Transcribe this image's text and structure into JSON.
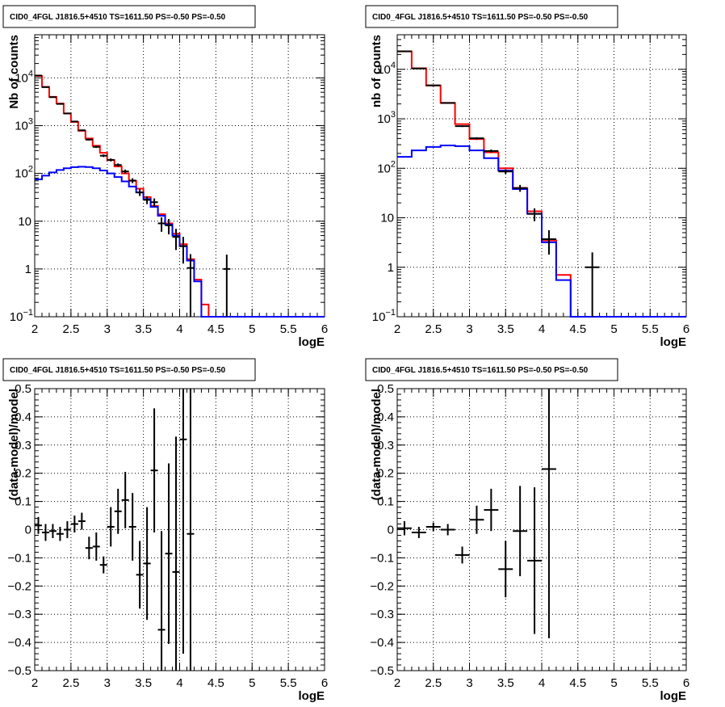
{
  "panels": [
    {
      "title": "CID0_4FGL J1816.5+4510 TS=1611.50 PS=-0.50 PS=-0.50",
      "ylabel": "Nb of counts",
      "xlabel": "logE",
      "yscale": "log",
      "yticks": [
        {
          "v": 0.1,
          "label": "10",
          "sup": "−1"
        },
        {
          "v": 1,
          "label": "1",
          "sup": ""
        },
        {
          "v": 10,
          "label": "10",
          "sup": ""
        },
        {
          "v": 100,
          "label": "10",
          "sup": "2"
        },
        {
          "v": 1000,
          "label": "10",
          "sup": "3"
        },
        {
          "v": 10000,
          "label": "10",
          "sup": "4"
        }
      ],
      "xticks": [
        "2",
        "2.5",
        "3",
        "3.5",
        "4",
        "4.5",
        "5",
        "5.5",
        "6"
      ]
    },
    {
      "title": "CID0_4FGL J1816.5+4510 TS=1611.50 PS=-0.50 PS=-0.50",
      "ylabel": "nb of counts",
      "xlabel": "logE",
      "yscale": "log",
      "yticks": [
        {
          "v": 0.1,
          "label": "10",
          "sup": "−1"
        },
        {
          "v": 1,
          "label": "1",
          "sup": ""
        },
        {
          "v": 10,
          "label": "10",
          "sup": ""
        },
        {
          "v": 100,
          "label": "10",
          "sup": "2"
        },
        {
          "v": 1000,
          "label": "10",
          "sup": "3"
        },
        {
          "v": 10000,
          "label": "10",
          "sup": "4"
        }
      ],
      "xticks": [
        "2",
        "2.5",
        "3",
        "3.5",
        "4",
        "4.5",
        "5",
        "5.5",
        "6"
      ]
    },
    {
      "title": "CID0_4FGL J1816.5+4510 TS=1611.50 PS=-0.50 PS=-0.50",
      "ylabel": "(data-model)/model",
      "xlabel": "logE",
      "yscale": "linear",
      "yticks": [
        {
          "v": -0.5,
          "label": "−0.5"
        },
        {
          "v": -0.4,
          "label": "−0.4"
        },
        {
          "v": -0.3,
          "label": "−0.3"
        },
        {
          "v": -0.2,
          "label": "−0.2"
        },
        {
          "v": -0.1,
          "label": "−0.1"
        },
        {
          "v": 0,
          "label": "0"
        },
        {
          "v": 0.1,
          "label": "0.1"
        },
        {
          "v": 0.2,
          "label": "0.2"
        },
        {
          "v": 0.3,
          "label": "0.3"
        },
        {
          "v": 0.4,
          "label": "0.4"
        },
        {
          "v": 0.5,
          "label": "0.5"
        }
      ],
      "xticks": [
        "2",
        "2.5",
        "3",
        "3.5",
        "4",
        "4.5",
        "5",
        "5.5",
        "6"
      ]
    },
    {
      "title": "CID0_4FGL J1816.5+4510 TS=1611.50 PS=-0.50 PS=-0.50",
      "ylabel": "(data-model)/model",
      "xlabel": "logE",
      "yscale": "linear",
      "yticks": [
        {
          "v": -0.5,
          "label": "−0.5"
        },
        {
          "v": -0.4,
          "label": "−0.4"
        },
        {
          "v": -0.3,
          "label": "−0.3"
        },
        {
          "v": -0.2,
          "label": "−0.2"
        },
        {
          "v": -0.1,
          "label": "−0.1"
        },
        {
          "v": 0,
          "label": "0"
        },
        {
          "v": 0.1,
          "label": "0.1"
        },
        {
          "v": 0.2,
          "label": "0.2"
        },
        {
          "v": 0.3,
          "label": "0.3"
        },
        {
          "v": 0.4,
          "label": "0.4"
        },
        {
          "v": 0.5,
          "label": "0.5"
        }
      ],
      "xticks": [
        "2",
        "2.5",
        "3",
        "3.5",
        "4",
        "4.5",
        "5",
        "5.5",
        "6"
      ]
    }
  ],
  "colors": {
    "total_model": "#ff0000",
    "source_model": "#0000ff",
    "data": "#000000",
    "grid": "#000000"
  },
  "chart_data": [
    {
      "type": "line",
      "title": "CID0_4FGL J1816.5+4510 TS=1611.50 PS=-0.50 PS=-0.50",
      "xlabel": "logE",
      "ylabel": "Nb of counts",
      "xlim": [
        2,
        6
      ],
      "ylim": [
        0.1,
        80000
      ],
      "yscale": "log",
      "grid": true,
      "bin_width": 0.1,
      "series": [
        {
          "style": "step",
          "color": "#ff0000",
          "x": [
            2.0,
            2.1,
            2.2,
            2.3,
            2.4,
            2.5,
            2.6,
            2.7,
            2.8,
            2.9,
            3.0,
            3.1,
            3.2,
            3.3,
            3.4,
            3.5,
            3.6,
            3.7,
            3.8,
            3.9,
            4.0,
            4.1,
            4.2,
            4.3,
            4.4,
            4.5,
            4.6,
            4.7,
            4.8,
            4.9,
            5.0,
            5.1,
            5.2,
            5.3,
            5.4,
            5.5,
            5.6,
            5.7,
            5.8,
            5.9
          ],
          "values": [
            11000,
            6500,
            4000,
            2900,
            1800,
            1200,
            780,
            540,
            380,
            270,
            190,
            140,
            100,
            70,
            48,
            32,
            21,
            14,
            9,
            5.5,
            3.3,
            1.6,
            0.6,
            0.18,
            0.1,
            0.1,
            0.1,
            0.1,
            0.1,
            0.1,
            0.1,
            0.1,
            0.1,
            0.1,
            0.1,
            0.1,
            0.1,
            0.1,
            0.1,
            0.1
          ]
        },
        {
          "style": "step",
          "color": "#0000ff",
          "x": [
            2.0,
            2.1,
            2.2,
            2.3,
            2.4,
            2.5,
            2.6,
            2.7,
            2.8,
            2.9,
            3.0,
            3.1,
            3.2,
            3.3,
            3.4,
            3.5,
            3.6,
            3.7,
            3.8,
            3.9,
            4.0,
            4.1,
            4.2,
            4.3,
            4.4,
            4.5,
            4.6,
            4.7,
            4.8,
            4.9,
            5.0,
            5.1,
            5.2,
            5.3,
            5.4,
            5.5,
            5.6,
            5.7,
            5.8,
            5.9
          ],
          "values": [
            75,
            90,
            105,
            118,
            128,
            135,
            138,
            136,
            128,
            115,
            100,
            84,
            68,
            53,
            40,
            29,
            20,
            13,
            8.5,
            5,
            3,
            1.5,
            0.55,
            0.1,
            0.1,
            0.1,
            0.1,
            0.1,
            0.1,
            0.1,
            0.1,
            0.1,
            0.1,
            0.1,
            0.1,
            0.1,
            0.1,
            0.1,
            0.1,
            0.1
          ]
        },
        {
          "style": "errorbar",
          "color": "#000000",
          "x": [
            2.05,
            2.15,
            2.25,
            2.35,
            2.45,
            2.55,
            2.65,
            2.75,
            2.85,
            2.95,
            3.05,
            3.15,
            3.25,
            3.35,
            3.45,
            3.55,
            3.65,
            3.75,
            3.85,
            3.95,
            4.05,
            4.15,
            4.65
          ],
          "values": [
            11200,
            6400,
            3950,
            2850,
            1800,
            1220,
            800,
            510,
            360,
            235,
            192,
            150,
            110,
            71,
            40,
            28,
            25,
            9,
            8.2,
            4.7,
            3,
            1.05,
            1
          ],
          "err": [
            105,
            80,
            63,
            53,
            42,
            35,
            28,
            23,
            19,
            15,
            14,
            12,
            10.5,
            8.4,
            6.3,
            5.3,
            5,
            3,
            2.9,
            2.2,
            1.7,
            1,
            1
          ]
        }
      ]
    },
    {
      "type": "line",
      "title": "CID0_4FGL J1816.5+4510 TS=1611.50 PS=-0.50 PS=-0.50",
      "xlabel": "logE",
      "ylabel": "nb of counts",
      "xlim": [
        2,
        6
      ],
      "ylim": [
        0.1,
        50000
      ],
      "yscale": "log",
      "grid": true,
      "bin_width": 0.2,
      "series": [
        {
          "style": "step",
          "color": "#ff0000",
          "x": [
            2.0,
            2.2,
            2.4,
            2.6,
            2.8,
            3.0,
            3.2,
            3.4,
            3.6,
            3.8,
            4.0,
            4.2,
            4.4,
            4.6,
            4.8,
            5.0,
            5.2,
            5.4,
            5.6,
            5.8
          ],
          "values": [
            23000,
            10500,
            4700,
            2100,
            780,
            390,
            210,
            100,
            40,
            13.5,
            3.5,
            0.7,
            0.1,
            0.1,
            0.1,
            0.1,
            0.1,
            0.1,
            0.1,
            0.1
          ]
        },
        {
          "style": "step",
          "color": "#0000ff",
          "x": [
            2.0,
            2.2,
            2.4,
            2.6,
            2.8,
            3.0,
            3.2,
            3.4,
            3.6,
            3.8,
            4.0,
            4.2,
            4.4,
            4.6,
            4.8,
            5.0,
            5.2,
            5.4,
            5.6,
            5.8
          ],
          "values": [
            170,
            230,
            270,
            290,
            280,
            230,
            160,
            90,
            38,
            12,
            3.2,
            0.55,
            0.1,
            0.1,
            0.1,
            0.1,
            0.1,
            0.1,
            0.1,
            0.1
          ]
        },
        {
          "style": "errorbar",
          "color": "#000000",
          "x": [
            2.1,
            2.3,
            2.5,
            2.7,
            2.9,
            3.1,
            3.3,
            3.5,
            3.7,
            3.9,
            4.1,
            4.7
          ],
          "values": [
            23100,
            10400,
            4750,
            2090,
            710,
            405,
            224,
            86,
            39.8,
            12,
            3.7,
            1
          ],
          "err": [
            152,
            102,
            69,
            46,
            27,
            20,
            15,
            9.3,
            6.3,
            3.5,
            1.9,
            1
          ]
        }
      ]
    },
    {
      "type": "scatter",
      "title": "CID0_4FGL J1816.5+4510 TS=1611.50 PS=-0.50 PS=-0.50",
      "xlabel": "logE",
      "ylabel": "(data-model)/model",
      "xlim": [
        2,
        6
      ],
      "ylim": [
        -0.5,
        0.5
      ],
      "grid": true,
      "x_halfwidth": 0.05,
      "series": [
        {
          "style": "errorbar",
          "color": "#000000",
          "x": [
            2.05,
            2.15,
            2.25,
            2.35,
            2.45,
            2.55,
            2.65,
            2.75,
            2.85,
            2.95,
            3.05,
            3.15,
            3.25,
            3.35,
            3.45,
            3.55,
            3.65,
            3.75,
            3.85,
            3.95,
            4.05,
            4.15
          ],
          "values": [
            0.015,
            -0.01,
            -0.005,
            -0.015,
            0,
            0.02,
            0.03,
            -0.065,
            -0.06,
            -0.125,
            0.01,
            0.065,
            0.105,
            0.01,
            -0.16,
            -0.12,
            0.21,
            -0.355,
            -0.085,
            -0.15,
            0.32,
            -0.015
          ],
          "err": [
            0.03,
            0.03,
            0.025,
            0.025,
            0.03,
            0.03,
            0.03,
            0.04,
            0.05,
            0.03,
            0.07,
            0.08,
            0.1,
            0.12,
            0.12,
            0.2,
            0.22,
            0.35,
            0.32,
            0.48,
            0.76,
            0.6
          ]
        }
      ]
    },
    {
      "type": "scatter",
      "title": "CID0_4FGL J1816.5+4510 TS=1611.50 PS=-0.50 PS=-0.50",
      "xlabel": "logE",
      "ylabel": "(data-model)/model",
      "xlim": [
        2,
        6
      ],
      "ylim": [
        -0.5,
        0.5
      ],
      "grid": true,
      "x_halfwidth": 0.1,
      "series": [
        {
          "style": "errorbar",
          "color": "#000000",
          "x": [
            2.1,
            2.3,
            2.5,
            2.7,
            2.9,
            3.1,
            3.3,
            3.5,
            3.7,
            3.9,
            4.1
          ],
          "values": [
            0.005,
            -0.01,
            0.01,
            0,
            -0.09,
            0.035,
            0.07,
            -0.14,
            -0.005,
            -0.11,
            0.215
          ],
          "err": [
            0.025,
            0.02,
            0.015,
            0.02,
            0.03,
            0.05,
            0.075,
            0.1,
            0.16,
            0.26,
            0.6
          ]
        }
      ]
    }
  ]
}
